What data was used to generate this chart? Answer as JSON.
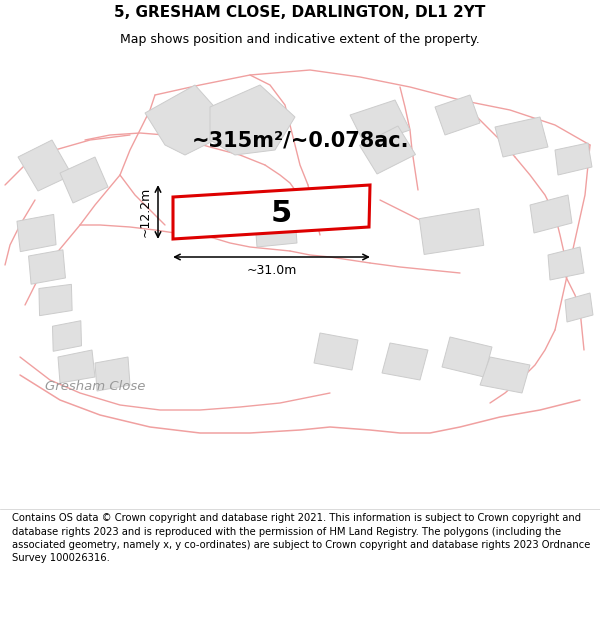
{
  "title": "5, GRESHAM CLOSE, DARLINGTON, DL1 2YT",
  "subtitle": "Map shows position and indicative extent of the property.",
  "area_label": "~315m²/~0.078ac.",
  "plot_number": "5",
  "dim_width": "~31.0m",
  "dim_height": "~12.2m",
  "footer_text": "Contains OS data © Crown copyright and database right 2021. This information is subject to Crown copyright and database rights 2023 and is reproduced with the permission of HM Land Registry. The polygons (including the associated geometry, namely x, y co-ordinates) are subject to Crown copyright and database rights 2023 Ordnance Survey 100026316.",
  "bg_color": "#ffffff",
  "map_bg": "#ffffff",
  "road_color": "#f0a0a0",
  "highlight_color": "#dd0000",
  "plot_fill": "#ffffff",
  "plot_edge": "#dd0000",
  "building_fill": "#e0e0e0",
  "building_edge": "#cccccc",
  "road_label_color": "#999999",
  "road_label": "Gresham Close",
  "title_fontsize": 11,
  "subtitle_fontsize": 9,
  "footer_fontsize": 7.2,
  "area_fontsize": 15,
  "plot_num_fontsize": 22,
  "dim_fontsize": 9
}
